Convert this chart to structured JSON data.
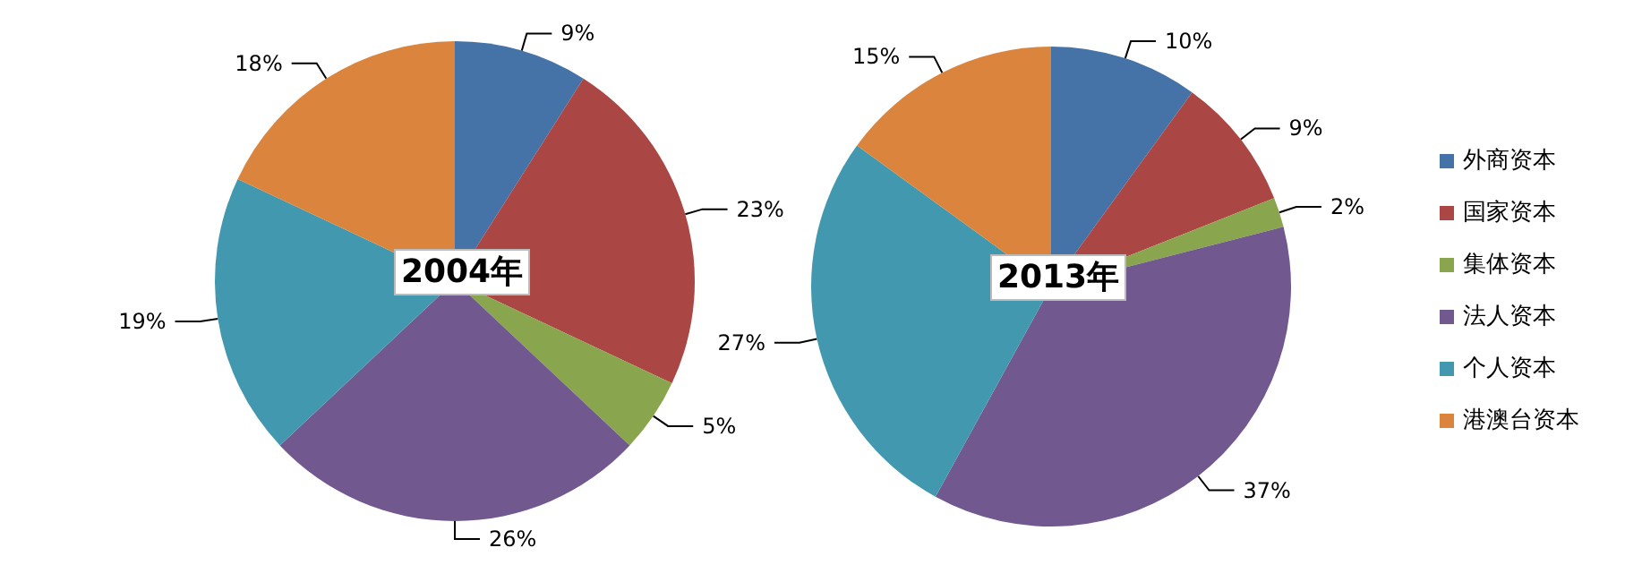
{
  "chart_data": {
    "type": "pie",
    "categories": [
      "外商资本",
      "国家资本",
      "集体资本",
      "法人资本",
      "个人资本",
      "港澳台资本"
    ],
    "colors": [
      "#4572a7",
      "#aa4643",
      "#89a54e",
      "#71588f",
      "#4198af",
      "#db843d"
    ],
    "legend": "right",
    "series": [
      {
        "name": "2004年",
        "values": [
          9,
          23,
          5,
          26,
          19,
          18
        ],
        "value_labels": [
          "9%",
          "23%",
          "5%",
          "26%",
          "19%",
          "18%"
        ]
      },
      {
        "name": "2013年",
        "values": [
          10,
          9,
          2,
          37,
          27,
          15
        ],
        "value_labels": [
          "10%",
          "9%",
          "2%",
          "37%",
          "27%",
          "15%"
        ]
      }
    ]
  }
}
